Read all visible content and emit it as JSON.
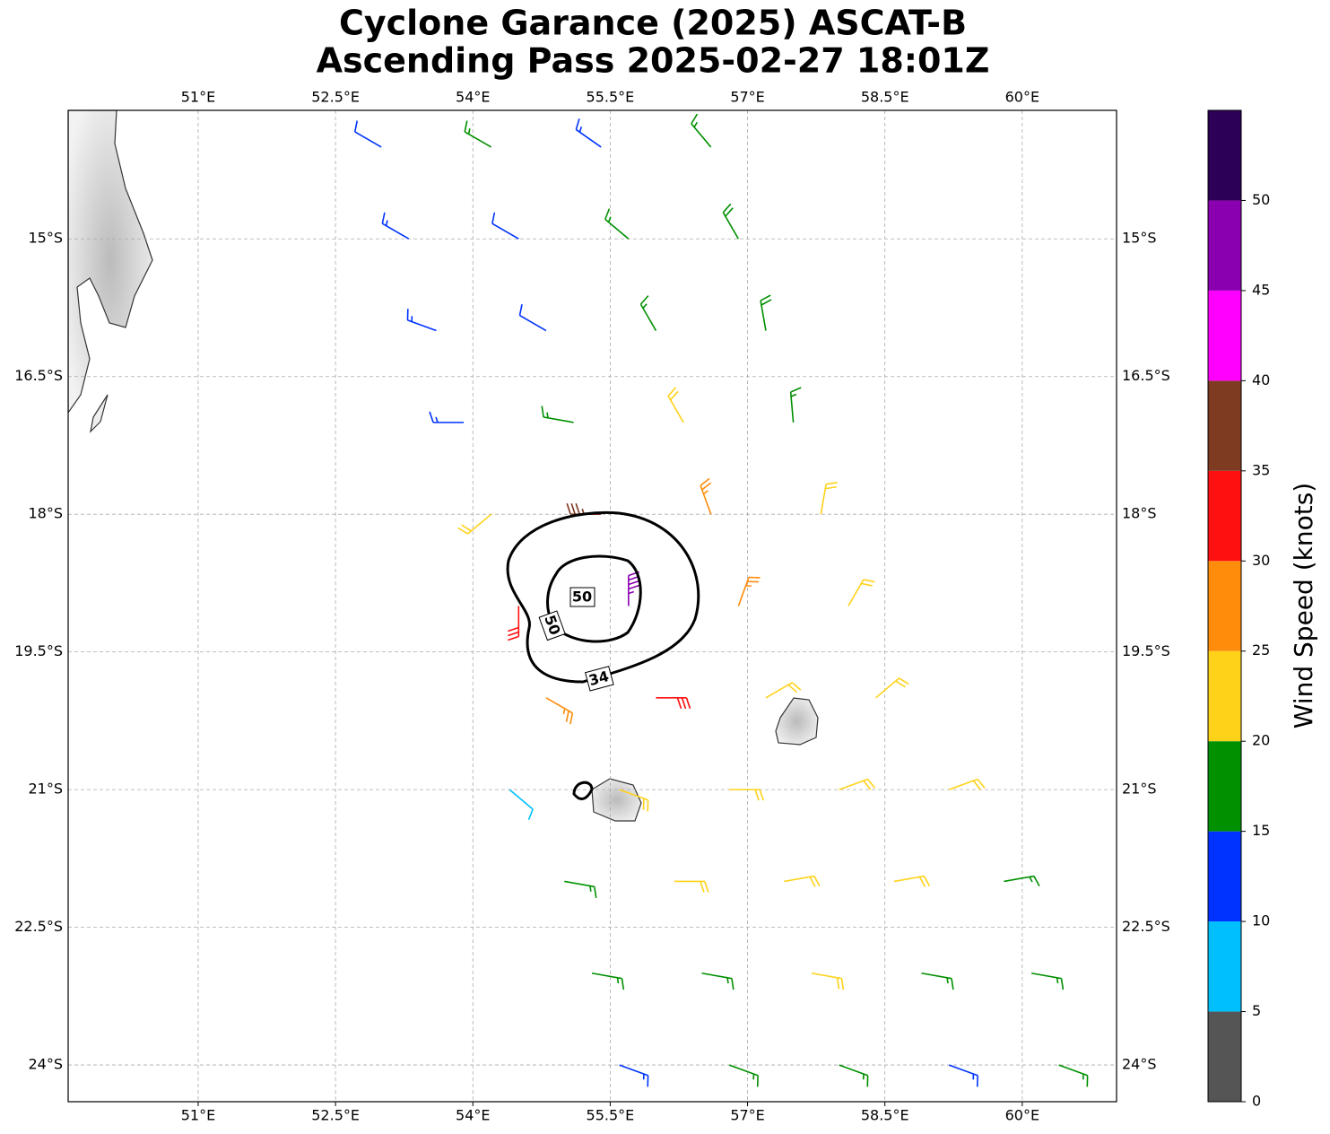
{
  "map": {
    "title": "Cyclone Garance (2025) ASCAT-B",
    "subtitle": "Ascending Pass 2025-02-27 18:01Z",
    "xlim": [
      49.58,
      61.03
    ],
    "ylim": [
      -24.4,
      -13.6
    ],
    "xticks": [
      {
        "value": 51,
        "label": "51°E"
      },
      {
        "value": 52.5,
        "label": "52.5°E"
      },
      {
        "value": 54,
        "label": "54°E"
      },
      {
        "value": 55.5,
        "label": "55.5°E"
      },
      {
        "value": 57,
        "label": "57°E"
      },
      {
        "value": 58.5,
        "label": "58.5°E"
      },
      {
        "value": 60,
        "label": "60°E"
      }
    ],
    "yticks": [
      {
        "value": -15,
        "label": "15°S"
      },
      {
        "value": -16.5,
        "label": "16.5°S"
      },
      {
        "value": -18,
        "label": "18°S"
      },
      {
        "value": -19.5,
        "label": "19.5°S"
      },
      {
        "value": -21,
        "label": "21°S"
      },
      {
        "value": -22.5,
        "label": "22.5°S"
      },
      {
        "value": -24,
        "label": "24°S"
      }
    ],
    "grid": true,
    "colorbar": {
      "label": "Wind Speed (knots)",
      "lim": [
        0,
        55
      ],
      "levels": [
        0,
        5,
        10,
        15,
        20,
        25,
        30,
        35,
        40,
        45,
        50,
        55
      ],
      "colors": [
        "#555555",
        "#00bfff",
        "#0033ff",
        "#009000",
        "#ffd21a",
        "#ff8c0a",
        "#ff1010",
        "#7f3a22",
        "#ff00ff",
        "#8a00b0",
        "#2c0057"
      ],
      "ticks": [
        0,
        5,
        10,
        15,
        20,
        25,
        30,
        35,
        40,
        45,
        50
      ]
    },
    "contour_labels": [
      50,
      50,
      34
    ],
    "barbs": [
      {
        "lon": 53.0,
        "lat": -14,
        "speed": 12,
        "dir": 300
      },
      {
        "lon": 54.2,
        "lat": -14,
        "speed": 17,
        "dir": 300
      },
      {
        "lon": 55.4,
        "lat": -14,
        "speed": 13,
        "dir": 305
      },
      {
        "lon": 56.6,
        "lat": -14,
        "speed": 17,
        "dir": 320
      },
      {
        "lon": 53.3,
        "lat": -15,
        "speed": 13,
        "dir": 300
      },
      {
        "lon": 54.5,
        "lat": -15,
        "speed": 12,
        "dir": 300
      },
      {
        "lon": 55.7,
        "lat": -15,
        "speed": 17,
        "dir": 310
      },
      {
        "lon": 56.9,
        "lat": -15,
        "speed": 18,
        "dir": 330
      },
      {
        "lon": 53.6,
        "lat": -16,
        "speed": 13,
        "dir": 290
      },
      {
        "lon": 54.8,
        "lat": -16,
        "speed": 12,
        "dir": 300
      },
      {
        "lon": 56.0,
        "lat": -16,
        "speed": 17,
        "dir": 330
      },
      {
        "lon": 57.2,
        "lat": -16,
        "speed": 18,
        "dir": 350
      },
      {
        "lon": 53.9,
        "lat": -17,
        "speed": 13,
        "dir": 270
      },
      {
        "lon": 55.1,
        "lat": -17,
        "speed": 17,
        "dir": 280
      },
      {
        "lon": 56.3,
        "lat": -17,
        "speed": 22,
        "dir": 330
      },
      {
        "lon": 57.5,
        "lat": -17,
        "speed": 17,
        "dir": 355
      },
      {
        "lon": 54.2,
        "lat": -18,
        "speed": 22,
        "dir": 230
      },
      {
        "lon": 55.4,
        "lat": -18,
        "speed": 37,
        "dir": 270
      },
      {
        "lon": 56.6,
        "lat": -18,
        "speed": 27,
        "dir": 340
      },
      {
        "lon": 57.8,
        "lat": -18,
        "speed": 22,
        "dir": 10
      },
      {
        "lon": 54.5,
        "lat": -19,
        "speed": 32,
        "dir": 180
      },
      {
        "lon": 55.7,
        "lat": -19,
        "speed": 47,
        "dir": 0
      },
      {
        "lon": 56.9,
        "lat": -19,
        "speed": 27,
        "dir": 20
      },
      {
        "lon": 58.1,
        "lat": -19,
        "speed": 22,
        "dir": 30
      },
      {
        "lon": 54.8,
        "lat": -20,
        "speed": 27,
        "dir": 120
      },
      {
        "lon": 56.0,
        "lat": -20,
        "speed": 32,
        "dir": 90
      },
      {
        "lon": 57.2,
        "lat": -20,
        "speed": 22,
        "dir": 60
      },
      {
        "lon": 58.4,
        "lat": -20,
        "speed": 22,
        "dir": 50
      },
      {
        "lon": 54.4,
        "lat": -21,
        "speed": 8,
        "dir": 130
      },
      {
        "lon": 55.6,
        "lat": -21,
        "speed": 22,
        "dir": 110
      },
      {
        "lon": 56.8,
        "lat": -21,
        "speed": 22,
        "dir": 90
      },
      {
        "lon": 58.0,
        "lat": -21,
        "speed": 22,
        "dir": 70
      },
      {
        "lon": 59.2,
        "lat": -21,
        "speed": 22,
        "dir": 70
      },
      {
        "lon": 55.0,
        "lat": -22,
        "speed": 17,
        "dir": 100
      },
      {
        "lon": 56.2,
        "lat": -22,
        "speed": 22,
        "dir": 90
      },
      {
        "lon": 57.4,
        "lat": -22,
        "speed": 22,
        "dir": 80
      },
      {
        "lon": 58.6,
        "lat": -22,
        "speed": 22,
        "dir": 80
      },
      {
        "lon": 59.8,
        "lat": -22,
        "speed": 17,
        "dir": 80
      },
      {
        "lon": 55.3,
        "lat": -23,
        "speed": 17,
        "dir": 100
      },
      {
        "lon": 56.5,
        "lat": -23,
        "speed": 17,
        "dir": 100
      },
      {
        "lon": 57.7,
        "lat": -23,
        "speed": 22,
        "dir": 100
      },
      {
        "lon": 58.9,
        "lat": -23,
        "speed": 17,
        "dir": 100
      },
      {
        "lon": 60.1,
        "lat": -23,
        "speed": 17,
        "dir": 100
      },
      {
        "lon": 55.6,
        "lat": -24,
        "speed": 13,
        "dir": 110
      },
      {
        "lon": 56.8,
        "lat": -24,
        "speed": 17,
        "dir": 110
      },
      {
        "lon": 58.0,
        "lat": -24,
        "speed": 17,
        "dir": 110
      },
      {
        "lon": 59.2,
        "lat": -24,
        "speed": 13,
        "dir": 110
      },
      {
        "lon": 60.4,
        "lat": -24,
        "speed": 17,
        "dir": 110
      }
    ]
  }
}
